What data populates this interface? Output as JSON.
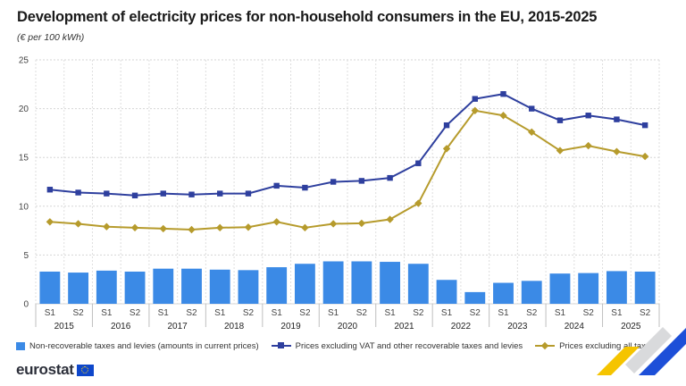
{
  "title": "Development of electricity prices for non-household consumers in the EU, 2015-2025",
  "subtitle": "(€ per 100 kWh)",
  "chart_data": {
    "type": "bar+line",
    "categories": [
      "S1",
      "S2",
      "S1",
      "S2",
      "S1",
      "S2",
      "S1",
      "S2",
      "S1",
      "S2",
      "S1",
      "S2",
      "S1",
      "S2",
      "S1",
      "S2",
      "S1",
      "S2",
      "S1",
      "S2",
      "S1",
      "S2"
    ],
    "years": [
      "2015",
      "2016",
      "2017",
      "2018",
      "2019",
      "2020",
      "2021",
      "2022",
      "2023",
      "2024",
      "2025"
    ],
    "ylim": [
      0,
      25
    ],
    "yticks": [
      0,
      5,
      10,
      15,
      20,
      25
    ],
    "grid": true,
    "legend_position": "bottom",
    "series": [
      {
        "name": "Non-recoverable taxes and levies (amounts in current prices)",
        "type": "bar",
        "color": "#3b8ae6",
        "values": [
          3.3,
          3.2,
          3.4,
          3.3,
          3.6,
          3.6,
          3.5,
          3.45,
          3.75,
          4.1,
          4.35,
          4.35,
          4.3,
          4.1,
          2.45,
          1.2,
          2.15,
          2.35,
          3.1,
          3.15,
          3.35,
          3.3
        ]
      },
      {
        "name": "Prices excluding VAT and other recoverable taxes and levies",
        "type": "line",
        "marker": "square",
        "color": "#2e3f9e",
        "values": [
          11.7,
          11.4,
          11.3,
          11.1,
          11.3,
          11.2,
          11.3,
          11.3,
          12.1,
          11.9,
          12.5,
          12.6,
          12.9,
          14.4,
          18.3,
          21.0,
          21.5,
          20.0,
          18.8,
          19.3,
          18.9,
          18.3
        ]
      },
      {
        "name": "Prices excluding all taxes",
        "type": "line",
        "marker": "diamond",
        "color": "#b69b2c",
        "values": [
          8.4,
          8.2,
          7.9,
          7.8,
          7.7,
          7.6,
          7.8,
          7.85,
          8.4,
          7.8,
          8.2,
          8.25,
          8.65,
          10.3,
          15.9,
          19.8,
          19.3,
          17.6,
          15.7,
          16.2,
          15.6,
          15.1
        ]
      }
    ]
  },
  "logo": {
    "text": "eurostat",
    "icon": "eu-flag-icon"
  }
}
